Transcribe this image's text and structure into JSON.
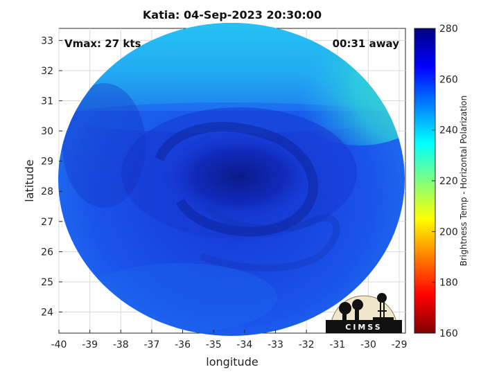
{
  "title": "Katia: 04-Sep-2023 20:30:00",
  "annotations": {
    "vmax": "Vmax: 27 kts",
    "time_away": "00:31 away"
  },
  "colorbar": {
    "label": "Brightness Temp - Horizontal Polarization",
    "ticks": [
      "280",
      "260",
      "240",
      "220",
      "200",
      "180",
      "160"
    ],
    "range": [
      160,
      280
    ],
    "colormap": "jet"
  },
  "logo": {
    "text": "CIMSS"
  },
  "chart_data": {
    "type": "heatmap",
    "xlabel": "longitude",
    "ylabel": "latitude",
    "xlim": [
      -40,
      -28.8
    ],
    "ylim": [
      23.3,
      33.4
    ],
    "xticks": [
      "-40",
      "-39",
      "-38",
      "-37",
      "-36",
      "-35",
      "-34",
      "-33",
      "-32",
      "-31",
      "-30",
      "-29"
    ],
    "yticks": [
      "33",
      "32",
      "31",
      "30",
      "29",
      "28",
      "27",
      "26",
      "25",
      "24"
    ],
    "grid": true,
    "center": {
      "lon": -34.2,
      "lat": 28.6
    },
    "colors": {
      "core": "#0a1a8a",
      "inner": "#1030c8",
      "band": "#1a4ae8",
      "outer": "#1e78f0",
      "north": "#22c8f0",
      "northeast": "#40e8c0"
    }
  }
}
